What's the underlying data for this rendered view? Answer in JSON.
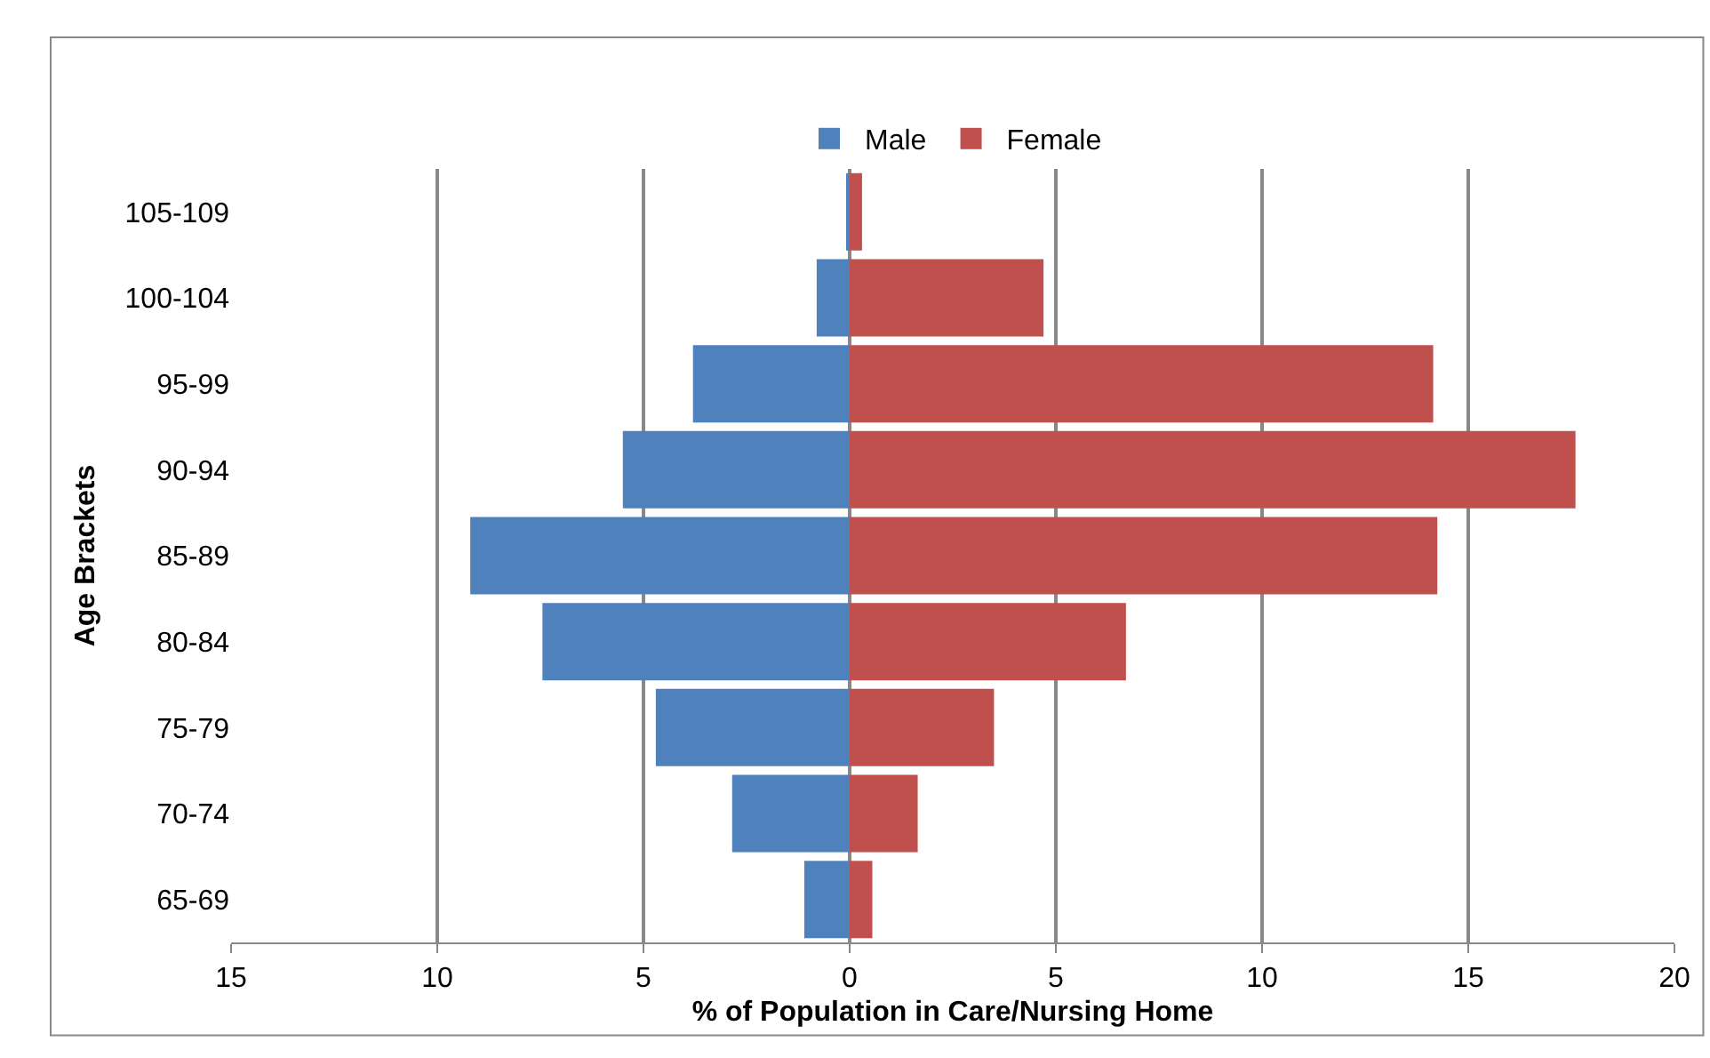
{
  "chart_data": {
    "type": "bar",
    "orientation": "horizontal",
    "xlabel": "% of Population in Care/Nursing Home",
    "ylabel": "Age Brackets",
    "categories": [
      "105-109",
      "100-104",
      "95-99",
      "90-94",
      "85-89",
      "80-84",
      "75-79",
      "70-74",
      "65-69"
    ],
    "series": [
      {
        "name": "Male",
        "color": "#4f81bd",
        "values": [
          -0.05,
          -0.8,
          -3.8,
          -5.5,
          -9.2,
          -7.45,
          -4.7,
          -2.85,
          -1.1
        ]
      },
      {
        "name": "Female",
        "color": "#c0504d",
        "values": [
          0.3,
          4.7,
          14.15,
          17.6,
          14.25,
          6.7,
          3.5,
          1.65,
          0.55
        ]
      }
    ],
    "xlim": [
      -15,
      20
    ],
    "xticks": [
      {
        "value": -15,
        "label": "15"
      },
      {
        "value": -10,
        "label": "10"
      },
      {
        "value": -5,
        "label": "5"
      },
      0,
      5,
      10,
      15,
      20
    ],
    "stacked": true,
    "grid": "x",
    "legend": "top"
  }
}
